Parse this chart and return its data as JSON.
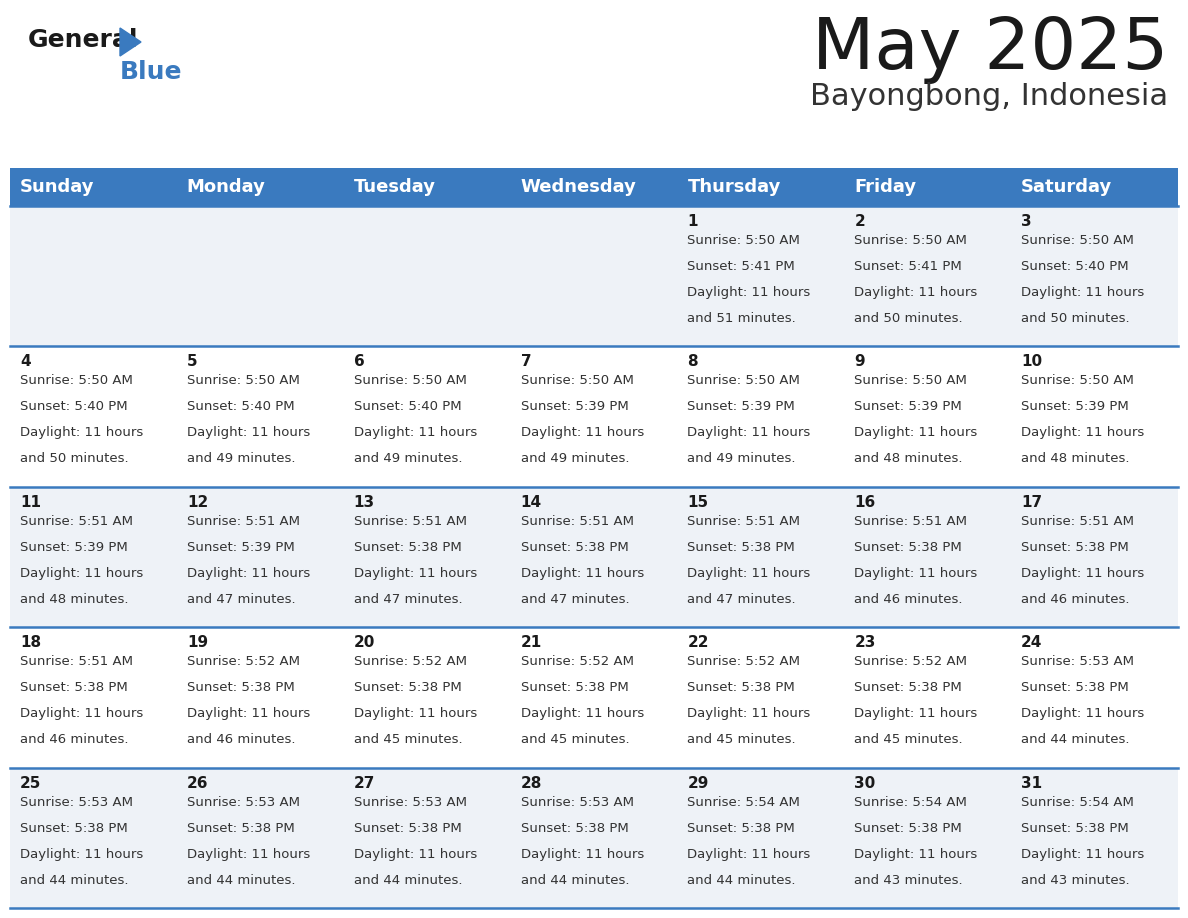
{
  "title": "May 2025",
  "subtitle": "Bayongbong, Indonesia",
  "header_color": "#3a7abf",
  "header_text_color": "#ffffff",
  "cell_bg_even": "#eef2f7",
  "cell_bg_odd": "#ffffff",
  "border_color": "#3a7abf",
  "day_names": [
    "Sunday",
    "Monday",
    "Tuesday",
    "Wednesday",
    "Thursday",
    "Friday",
    "Saturday"
  ],
  "days": [
    {
      "day": 1,
      "col": 4,
      "row": 0,
      "sunrise": "5:50 AM",
      "sunset": "5:41 PM",
      "daylight_h": "11 hours",
      "daylight_m": "51 minutes."
    },
    {
      "day": 2,
      "col": 5,
      "row": 0,
      "sunrise": "5:50 AM",
      "sunset": "5:41 PM",
      "daylight_h": "11 hours",
      "daylight_m": "50 minutes."
    },
    {
      "day": 3,
      "col": 6,
      "row": 0,
      "sunrise": "5:50 AM",
      "sunset": "5:40 PM",
      "daylight_h": "11 hours",
      "daylight_m": "50 minutes."
    },
    {
      "day": 4,
      "col": 0,
      "row": 1,
      "sunrise": "5:50 AM",
      "sunset": "5:40 PM",
      "daylight_h": "11 hours",
      "daylight_m": "50 minutes."
    },
    {
      "day": 5,
      "col": 1,
      "row": 1,
      "sunrise": "5:50 AM",
      "sunset": "5:40 PM",
      "daylight_h": "11 hours",
      "daylight_m": "49 minutes."
    },
    {
      "day": 6,
      "col": 2,
      "row": 1,
      "sunrise": "5:50 AM",
      "sunset": "5:40 PM",
      "daylight_h": "11 hours",
      "daylight_m": "49 minutes."
    },
    {
      "day": 7,
      "col": 3,
      "row": 1,
      "sunrise": "5:50 AM",
      "sunset": "5:39 PM",
      "daylight_h": "11 hours",
      "daylight_m": "49 minutes."
    },
    {
      "day": 8,
      "col": 4,
      "row": 1,
      "sunrise": "5:50 AM",
      "sunset": "5:39 PM",
      "daylight_h": "11 hours",
      "daylight_m": "49 minutes."
    },
    {
      "day": 9,
      "col": 5,
      "row": 1,
      "sunrise": "5:50 AM",
      "sunset": "5:39 PM",
      "daylight_h": "11 hours",
      "daylight_m": "48 minutes."
    },
    {
      "day": 10,
      "col": 6,
      "row": 1,
      "sunrise": "5:50 AM",
      "sunset": "5:39 PM",
      "daylight_h": "11 hours",
      "daylight_m": "48 minutes."
    },
    {
      "day": 11,
      "col": 0,
      "row": 2,
      "sunrise": "5:51 AM",
      "sunset": "5:39 PM",
      "daylight_h": "11 hours",
      "daylight_m": "48 minutes."
    },
    {
      "day": 12,
      "col": 1,
      "row": 2,
      "sunrise": "5:51 AM",
      "sunset": "5:39 PM",
      "daylight_h": "11 hours",
      "daylight_m": "47 minutes."
    },
    {
      "day": 13,
      "col": 2,
      "row": 2,
      "sunrise": "5:51 AM",
      "sunset": "5:38 PM",
      "daylight_h": "11 hours",
      "daylight_m": "47 minutes."
    },
    {
      "day": 14,
      "col": 3,
      "row": 2,
      "sunrise": "5:51 AM",
      "sunset": "5:38 PM",
      "daylight_h": "11 hours",
      "daylight_m": "47 minutes."
    },
    {
      "day": 15,
      "col": 4,
      "row": 2,
      "sunrise": "5:51 AM",
      "sunset": "5:38 PM",
      "daylight_h": "11 hours",
      "daylight_m": "47 minutes."
    },
    {
      "day": 16,
      "col": 5,
      "row": 2,
      "sunrise": "5:51 AM",
      "sunset": "5:38 PM",
      "daylight_h": "11 hours",
      "daylight_m": "46 minutes."
    },
    {
      "day": 17,
      "col": 6,
      "row": 2,
      "sunrise": "5:51 AM",
      "sunset": "5:38 PM",
      "daylight_h": "11 hours",
      "daylight_m": "46 minutes."
    },
    {
      "day": 18,
      "col": 0,
      "row": 3,
      "sunrise": "5:51 AM",
      "sunset": "5:38 PM",
      "daylight_h": "11 hours",
      "daylight_m": "46 minutes."
    },
    {
      "day": 19,
      "col": 1,
      "row": 3,
      "sunrise": "5:52 AM",
      "sunset": "5:38 PM",
      "daylight_h": "11 hours",
      "daylight_m": "46 minutes."
    },
    {
      "day": 20,
      "col": 2,
      "row": 3,
      "sunrise": "5:52 AM",
      "sunset": "5:38 PM",
      "daylight_h": "11 hours",
      "daylight_m": "45 minutes."
    },
    {
      "day": 21,
      "col": 3,
      "row": 3,
      "sunrise": "5:52 AM",
      "sunset": "5:38 PM",
      "daylight_h": "11 hours",
      "daylight_m": "45 minutes."
    },
    {
      "day": 22,
      "col": 4,
      "row": 3,
      "sunrise": "5:52 AM",
      "sunset": "5:38 PM",
      "daylight_h": "11 hours",
      "daylight_m": "45 minutes."
    },
    {
      "day": 23,
      "col": 5,
      "row": 3,
      "sunrise": "5:52 AM",
      "sunset": "5:38 PM",
      "daylight_h": "11 hours",
      "daylight_m": "45 minutes."
    },
    {
      "day": 24,
      "col": 6,
      "row": 3,
      "sunrise": "5:53 AM",
      "sunset": "5:38 PM",
      "daylight_h": "11 hours",
      "daylight_m": "44 minutes."
    },
    {
      "day": 25,
      "col": 0,
      "row": 4,
      "sunrise": "5:53 AM",
      "sunset": "5:38 PM",
      "daylight_h": "11 hours",
      "daylight_m": "44 minutes."
    },
    {
      "day": 26,
      "col": 1,
      "row": 4,
      "sunrise": "5:53 AM",
      "sunset": "5:38 PM",
      "daylight_h": "11 hours",
      "daylight_m": "44 minutes."
    },
    {
      "day": 27,
      "col": 2,
      "row": 4,
      "sunrise": "5:53 AM",
      "sunset": "5:38 PM",
      "daylight_h": "11 hours",
      "daylight_m": "44 minutes."
    },
    {
      "day": 28,
      "col": 3,
      "row": 4,
      "sunrise": "5:53 AM",
      "sunset": "5:38 PM",
      "daylight_h": "11 hours",
      "daylight_m": "44 minutes."
    },
    {
      "day": 29,
      "col": 4,
      "row": 4,
      "sunrise": "5:54 AM",
      "sunset": "5:38 PM",
      "daylight_h": "11 hours",
      "daylight_m": "44 minutes."
    },
    {
      "day": 30,
      "col": 5,
      "row": 4,
      "sunrise": "5:54 AM",
      "sunset": "5:38 PM",
      "daylight_h": "11 hours",
      "daylight_m": "43 minutes."
    },
    {
      "day": 31,
      "col": 6,
      "row": 4,
      "sunrise": "5:54 AM",
      "sunset": "5:38 PM",
      "daylight_h": "11 hours",
      "daylight_m": "43 minutes."
    }
  ],
  "num_rows": 5,
  "num_cols": 7,
  "fig_width": 11.88,
  "fig_height": 9.18,
  "dpi": 100
}
